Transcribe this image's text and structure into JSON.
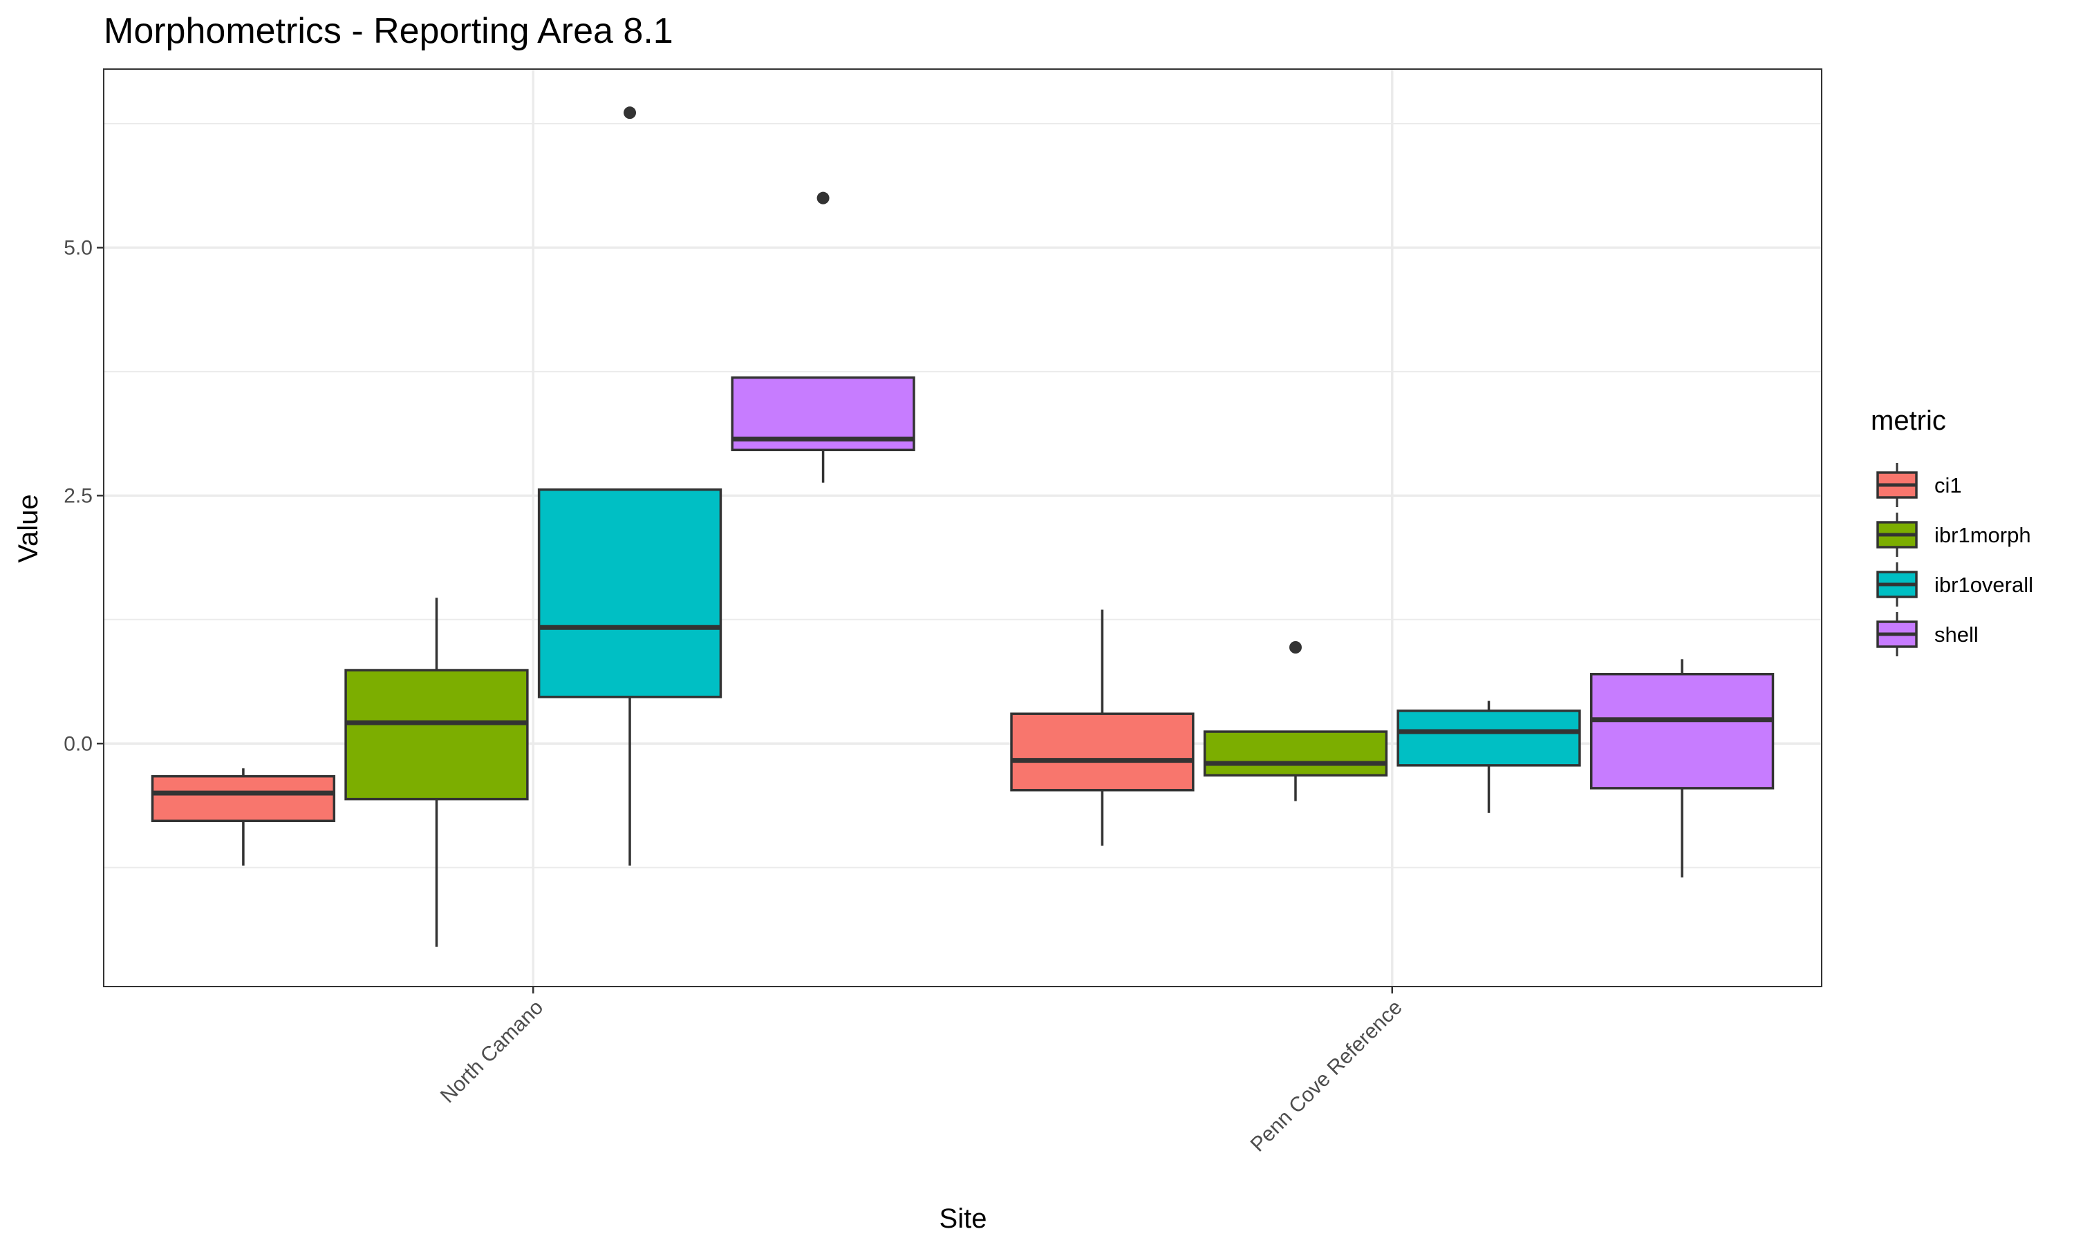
{
  "chart_data": {
    "type": "boxplot",
    "title": "Morphometrics - Reporting Area 8.1",
    "xlabel": "Site",
    "ylabel": "Value",
    "ylim": [
      -2.45,
      6.8
    ],
    "y_ticks": [
      0.0,
      2.5,
      5.0
    ],
    "y_tick_labels": [
      "0.0",
      "2.5",
      "5.0"
    ],
    "grid": true,
    "legend_position": "right",
    "legend_title": "metric",
    "categories": [
      "North Camano",
      "Penn Cove Reference"
    ],
    "series": [
      {
        "name": "ci1",
        "color": "#F8766D",
        "boxes": [
          {
            "category": "North Camano",
            "lower_whisker": -1.23,
            "q1": -0.78,
            "median": -0.5,
            "q3": -0.33,
            "upper_whisker": -0.25,
            "outliers": []
          },
          {
            "category": "Penn Cove Reference",
            "lower_whisker": -1.03,
            "q1": -0.47,
            "median": -0.17,
            "q3": 0.3,
            "upper_whisker": 1.35,
            "outliers": []
          }
        ]
      },
      {
        "name": "ibr1morph",
        "color": "#7CAE00",
        "boxes": [
          {
            "category": "North Camano",
            "lower_whisker": -2.05,
            "q1": -0.56,
            "median": 0.21,
            "q3": 0.74,
            "upper_whisker": 1.47,
            "outliers": []
          },
          {
            "category": "Penn Cove Reference",
            "lower_whisker": -0.58,
            "q1": -0.32,
            "median": -0.2,
            "q3": 0.12,
            "upper_whisker": 0.12,
            "outliers": [
              0.97
            ]
          }
        ]
      },
      {
        "name": "ibr1overall",
        "color": "#00BFC4",
        "boxes": [
          {
            "category": "North Camano",
            "lower_whisker": -1.23,
            "q1": 0.47,
            "median": 1.17,
            "q3": 2.56,
            "upper_whisker": 2.56,
            "outliers": [
              6.36
            ]
          },
          {
            "category": "Penn Cove Reference",
            "lower_whisker": -0.7,
            "q1": -0.22,
            "median": 0.12,
            "q3": 0.33,
            "upper_whisker": 0.43,
            "outliers": []
          }
        ]
      },
      {
        "name": "shell",
        "color": "#C77CFF",
        "boxes": [
          {
            "category": "North Camano",
            "lower_whisker": 2.63,
            "q1": 2.96,
            "median": 3.07,
            "q3": 3.69,
            "upper_whisker": 3.69,
            "outliers": [
              5.5
            ]
          },
          {
            "category": "Penn Cove Reference",
            "lower_whisker": -1.35,
            "q1": -0.45,
            "median": 0.24,
            "q3": 0.7,
            "upper_whisker": 0.85,
            "outliers": []
          }
        ]
      }
    ]
  }
}
